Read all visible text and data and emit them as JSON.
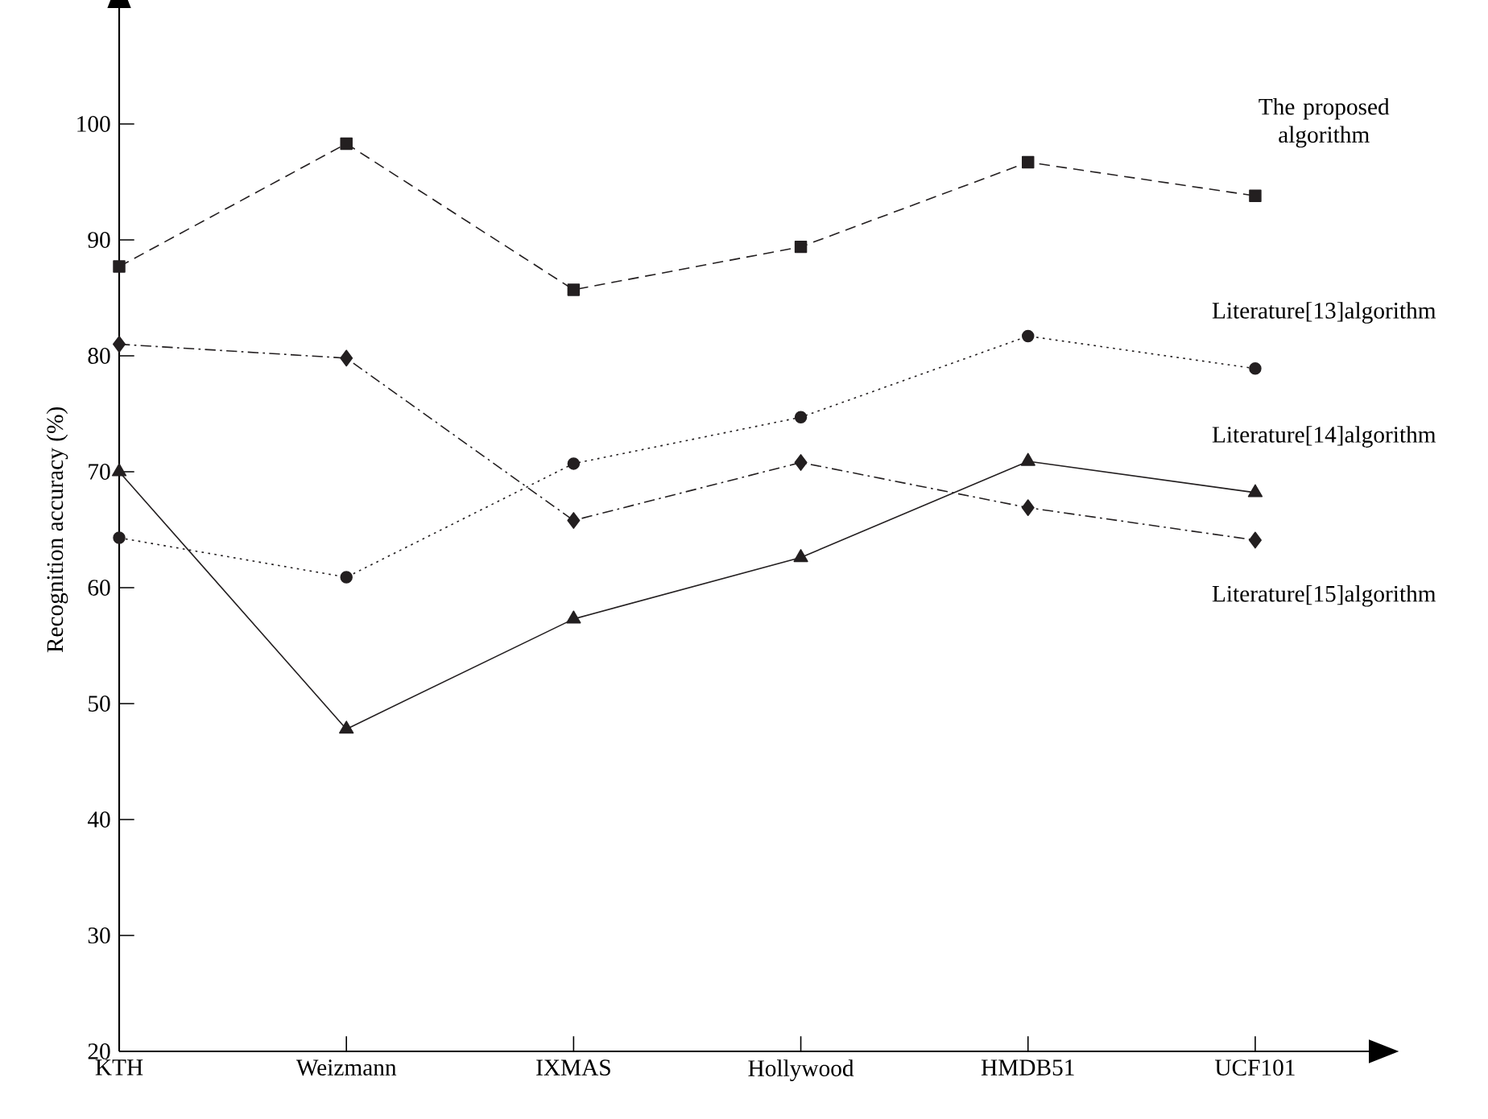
{
  "chart_data": {
    "type": "line",
    "ylabel": "Recognition accuracy (%)",
    "categories": [
      "KTH",
      "Weizmann",
      "IXMAS",
      "Hollywood",
      "HMDB51",
      "UCF101"
    ],
    "ylim": [
      20,
      110
    ],
    "yticks": [
      20,
      30,
      40,
      50,
      60,
      70,
      80,
      90,
      100
    ],
    "grid": false,
    "series": [
      {
        "name": "The proposed algorithm",
        "color": "#231f20",
        "marker": "square",
        "line_style": "dashed",
        "values": [
          87.7,
          98.3,
          85.7,
          89.4,
          96.7,
          93.8
        ]
      },
      {
        "name": "Literature[13]algorithm",
        "color": "#231f20",
        "marker": "circle",
        "line_style": "dotted",
        "values": [
          64.3,
          60.9,
          70.7,
          74.7,
          81.7,
          78.9
        ]
      },
      {
        "name": "Literature[14]algorithm",
        "color": "#231f20",
        "marker": "triangle",
        "line_style": "solid",
        "values": [
          70.0,
          47.8,
          57.3,
          62.6,
          70.9,
          68.2
        ]
      },
      {
        "name": "Literature[15]algorithm",
        "color": "#231f20",
        "marker": "diamond",
        "line_style": "dashdot",
        "values": [
          81.0,
          79.8,
          65.8,
          70.8,
          66.9,
          64.1
        ]
      }
    ]
  }
}
